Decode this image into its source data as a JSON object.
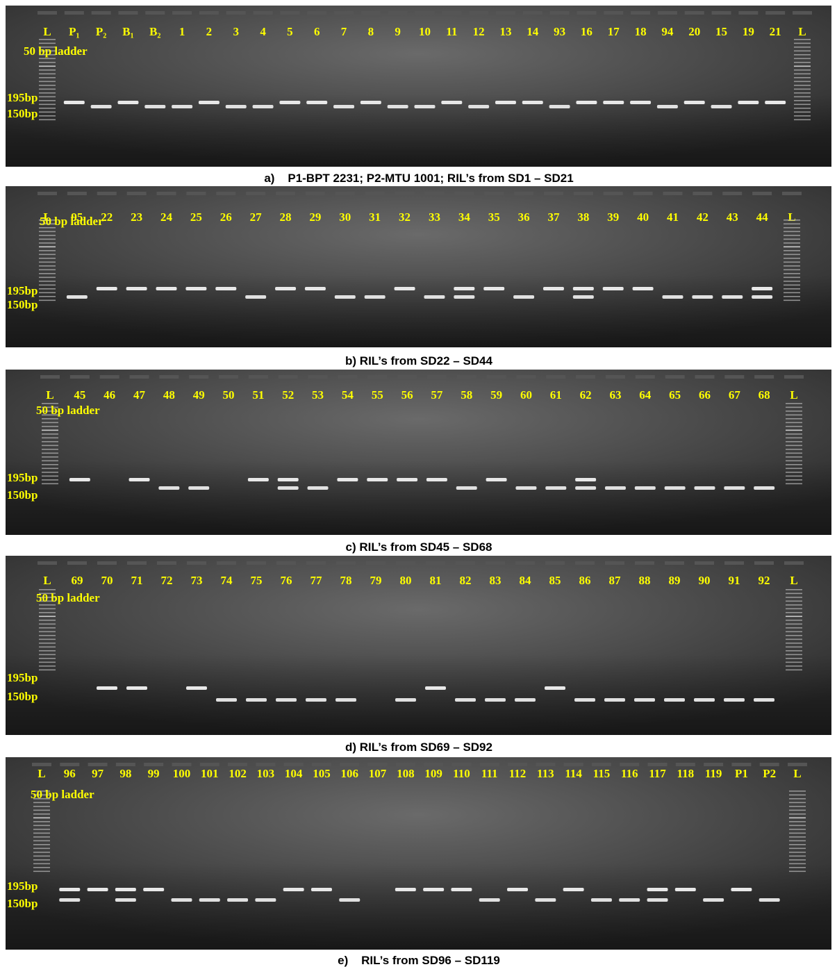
{
  "panels": [
    {
      "lanes": [
        "L",
        "P₁",
        "P₂",
        "B₁",
        "B₂",
        "1",
        "2",
        "3",
        "4",
        "5",
        "6",
        "7",
        "8",
        "9",
        "10",
        "11",
        "12",
        "13",
        "14",
        "93",
        "16",
        "17",
        "18",
        "94",
        "20",
        "15",
        "19",
        "21",
        "L"
      ],
      "ladder_label": "50 bp ladder",
      "marker_high": "195bp",
      "marker_low": "150bp",
      "caption": "a)    P1-BPT 2231; P2-MTU 1001; RIL’s from SD1 – SD21"
    },
    {
      "lanes": [
        "L",
        "95",
        "22",
        "23",
        "24",
        "25",
        "26",
        "27",
        "28",
        "29",
        "30",
        "31",
        "32",
        "33",
        "34",
        "35",
        "36",
        "37",
        "38",
        "39",
        "40",
        "41",
        "42",
        "43",
        "44",
        "L"
      ],
      "ladder_label": "50 bp ladder",
      "marker_high": "195bp",
      "marker_low": "150bp",
      "caption": "b) RIL’s from SD22 – SD44"
    },
    {
      "lanes": [
        "L",
        "45",
        "46",
        "47",
        "48",
        "49",
        "50",
        "51",
        "52",
        "53",
        "54",
        "55",
        "56",
        "57",
        "58",
        "59",
        "60",
        "61",
        "62",
        "63",
        "64",
        "65",
        "66",
        "67",
        "68",
        "L"
      ],
      "ladder_label": "50 bp ladder",
      "marker_high": "195bp",
      "marker_low": "150bp",
      "caption": "c) RIL’s from SD45 – SD68"
    },
    {
      "lanes": [
        "L",
        "69",
        "70",
        "71",
        "72",
        "73",
        "74",
        "75",
        "76",
        "77",
        "78",
        "79",
        "80",
        "81",
        "82",
        "83",
        "84",
        "85",
        "86",
        "87",
        "88",
        "89",
        "90",
        "91",
        "92",
        "L"
      ],
      "ladder_label": "50 bp ladder",
      "marker_high": "195bp",
      "marker_low": "150bp",
      "caption": "d) RIL’s from SD69 – SD92"
    },
    {
      "lanes": [
        "L",
        "96",
        "97",
        "98",
        "99",
        "100",
        "101",
        "102",
        "103",
        "104",
        "105",
        "106",
        "107",
        "108",
        "109",
        "110",
        "111",
        "112",
        "113",
        "114",
        "115",
        "116",
        "117",
        "118",
        "119",
        "P1",
        "P2",
        "L"
      ],
      "ladder_label": "50 bp ladder",
      "marker_high": "195bp",
      "marker_low": "150bp",
      "caption": "e)    RIL’s from SD96 – SD119"
    }
  ]
}
